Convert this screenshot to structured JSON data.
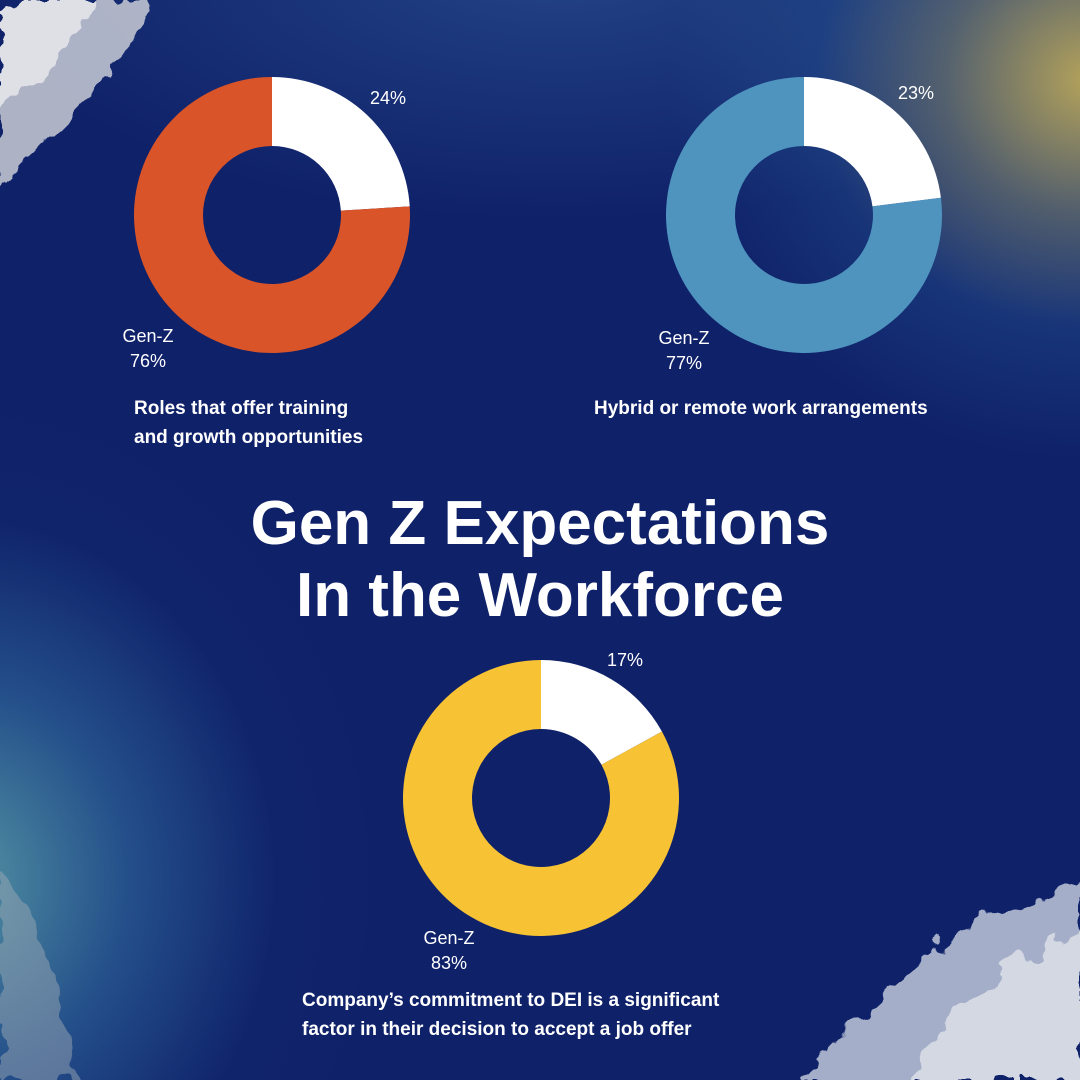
{
  "title": "Gen Z Expectations\nIn the Workforce",
  "colors": {
    "background": "#0f2169",
    "remainder": "#ffffff",
    "orange": "#d95428",
    "blue": "#4e94bf",
    "yellow": "#f7c234"
  },
  "chart_data": [
    {
      "type": "pie",
      "donut": true,
      "categories": [
        "Gen-Z",
        ""
      ],
      "values": [
        76,
        24
      ],
      "labels": [
        "76%",
        "24%"
      ],
      "colors": [
        "#d95428",
        "#ffffff"
      ],
      "caption": "Roles that offer training\nand growth opportunities"
    },
    {
      "type": "pie",
      "donut": true,
      "categories": [
        "Gen-Z",
        ""
      ],
      "values": [
        77,
        23
      ],
      "labels": [
        "77%",
        "23%"
      ],
      "colors": [
        "#4e94bf",
        "#ffffff"
      ],
      "caption": "Hybrid or remote work arrangements"
    },
    {
      "type": "pie",
      "donut": true,
      "categories": [
        "Gen-Z",
        ""
      ],
      "values": [
        83,
        17
      ],
      "labels": [
        "83%",
        "17%"
      ],
      "colors": [
        "#f7c234",
        "#ffffff"
      ],
      "caption": "Company’s commitment to DEI is a significant\nfactor in their decision to accept a job offer"
    }
  ]
}
